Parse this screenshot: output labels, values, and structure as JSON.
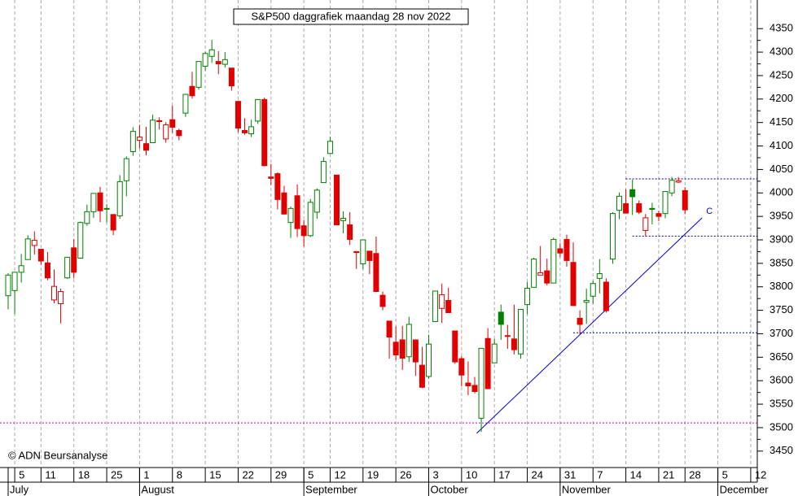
{
  "chart_data": {
    "type": "candlestick",
    "title": "S&P500 daggrafiek maandag 28 nov 2022",
    "credit": "© ADN Beursanalyse",
    "open": [
      3781,
      3792,
      3831,
      3858,
      3888,
      3880,
      3851,
      3772,
      3764,
      3819,
      3883,
      3861,
      3935,
      3960,
      4000,
      3966,
      3954,
      3951,
      4026,
      4088,
      4112,
      4105,
      4107,
      4154,
      4115,
      4156,
      4133,
      4170,
      4227,
      4225,
      4270,
      4291,
      4280,
      4274,
      4266,
      4195,
      4133,
      4126,
      4153,
      4199,
      4034,
      4041,
      4000,
      3937,
      3994,
      3930,
      3909,
      3959,
      4022,
      4084,
      4038,
      3941,
      3932,
      3875,
      3849,
      3876,
      3871,
      3782,
      3727,
      3682,
      3687,
      3651,
      3687,
      3633,
      3609,
      3726,
      3754,
      3771,
      3706,
      3647,
      3595,
      3590,
      3520,
      3690,
      3638,
      3746,
      3696,
      3689,
      3657,
      3762,
      3799,
      3825,
      3834,
      3808,
      3881,
      3901,
      3852,
      3733,
      3767,
      3780,
      3818,
      3810,
      3859,
      3963,
      3977,
      4007,
      3977,
      3920,
      3967,
      3956,
      3956,
      4000,
      4023,
      4005
    ],
    "high": [
      3829,
      3832,
      3870,
      3910,
      3918,
      3880,
      3874,
      3837,
      3796,
      3864,
      3902,
      3939,
      3975,
      3999,
      4013,
      3976,
      3954,
      4038,
      4078,
      4140,
      4145,
      4141,
      4167,
      4161,
      4151,
      4186,
      4137,
      4211,
      4258,
      4280,
      4301,
      4326,
      4302,
      4300,
      4266,
      4196,
      4159,
      4156,
      4200,
      4203,
      4062,
      4044,
      4015,
      3971,
      4018,
      3942,
      3987,
      4010,
      4076,
      4119,
      4038,
      3961,
      3959,
      3876,
      3900,
      3876,
      3907,
      3790,
      3727,
      3716,
      3717,
      3736,
      3687,
      3672,
      3698,
      3791,
      3807,
      3798,
      3706,
      3652,
      3641,
      3608,
      3669,
      3712,
      3689,
      3762,
      3719,
      3762,
      3752,
      3810,
      3862,
      3887,
      3860,
      3905,
      3893,
      3911,
      3895,
      3750,
      3796,
      3813,
      3859,
      3818,
      3959,
      4001,
      4008,
      4028,
      3984,
      3955,
      3979,
      3962,
      4004,
      4034,
      4034,
      4012
    ],
    "low": [
      3752,
      3742,
      3809,
      3858,
      3869,
      3847,
      3814,
      3765,
      3722,
      3817,
      3818,
      3860,
      3930,
      3947,
      3938,
      3937,
      3910,
      3945,
      3993,
      4079,
      4095,
      4080,
      4107,
      4135,
      4107,
      4128,
      4112,
      4162,
      4201,
      4220,
      4261,
      4277,
      4253,
      4267,
      4218,
      4129,
      4124,
      4119,
      4147,
      4057,
      4017,
      3965,
      3954,
      3904,
      3906,
      3886,
      3906,
      3945,
      4022,
      4083,
      3933,
      3914,
      3889,
      3838,
      3838,
      3827,
      3789,
      3750,
      3647,
      3644,
      3623,
      3640,
      3610,
      3584,
      3604,
      3726,
      3723,
      3745,
      3636,
      3588,
      3569,
      3573,
      3491,
      3584,
      3638,
      3687,
      3668,
      3656,
      3647,
      3742,
      3799,
      3825,
      3803,
      3808,
      3863,
      3843,
      3759,
      3699,
      3721,
      3764,
      3786,
      3745,
      3849,
      3944,
      3957,
      3953,
      3955,
      3907,
      3933,
      3940,
      3946,
      3993,
      4021,
      3955
    ],
    "close": [
      3825,
      3831,
      3845,
      3902,
      3899,
      3855,
      3819,
      3801,
      3790,
      3863,
      3831,
      3937,
      3960,
      3999,
      3962,
      3967,
      3921,
      4024,
      4073,
      4131,
      4119,
      4091,
      4155,
      4152,
      4145,
      4140,
      4122,
      4210,
      4207,
      4280,
      4297,
      4305,
      4275,
      4284,
      4228,
      4138,
      4128,
      4141,
      4199,
      4058,
      4031,
      3986,
      3955,
      3967,
      3924,
      3909,
      3980,
      4006,
      4067,
      4110,
      3932,
      3946,
      3901,
      3873,
      3900,
      3856,
      3790,
      3758,
      3693,
      3655,
      3648,
      3720,
      3640,
      3586,
      3678,
      3791,
      3783,
      3745,
      3640,
      3612,
      3589,
      3577,
      3669,
      3583,
      3678,
      3720,
      3695,
      3666,
      3752,
      3797,
      3859,
      3830,
      3808,
      3901,
      3872,
      3856,
      3760,
      3720,
      3771,
      3807,
      3828,
      3749,
      3956,
      3993,
      3957,
      3992,
      3959,
      3947,
      3965,
      3950,
      4003,
      4027,
      4026,
      3964
    ],
    "up_color": "#008000",
    "down_color": "#e00000",
    "xlim": [
      -1.24,
      114
    ],
    "ylim": [
      3415,
      4411
    ],
    "yticks": [
      3450,
      3500,
      3550,
      3600,
      3650,
      3700,
      3750,
      3800,
      3850,
      3900,
      3950,
      4000,
      4050,
      4100,
      4150,
      4200,
      4250,
      4300,
      4350
    ],
    "xticks": [
      {
        "value": 1,
        "label": "5"
      },
      {
        "value": 5,
        "label": "11"
      },
      {
        "value": 10,
        "label": "18"
      },
      {
        "value": 15,
        "label": "25"
      },
      {
        "value": 20,
        "label": "1"
      },
      {
        "value": 25,
        "label": "8"
      },
      {
        "value": 30,
        "label": "15"
      },
      {
        "value": 35,
        "label": "22"
      },
      {
        "value": 40,
        "label": "29"
      },
      {
        "value": 45,
        "label": "5"
      },
      {
        "value": 49,
        "label": "12"
      },
      {
        "value": 54,
        "label": "19"
      },
      {
        "value": 59,
        "label": "26"
      },
      {
        "value": 64,
        "label": "3"
      },
      {
        "value": 69,
        "label": "10"
      },
      {
        "value": 74,
        "label": "17"
      },
      {
        "value": 79,
        "label": "24"
      },
      {
        "value": 84,
        "label": "31"
      },
      {
        "value": 89,
        "label": "7"
      },
      {
        "value": 94,
        "label": "14"
      },
      {
        "value": 99,
        "label": "21"
      },
      {
        "value": 103,
        "label": "28"
      },
      {
        "value": 108,
        "label": "5"
      },
      {
        "value": 113,
        "label": "12"
      }
    ],
    "months": [
      {
        "value": 0,
        "label": "July"
      },
      {
        "value": 20,
        "label": "August"
      },
      {
        "value": 45,
        "label": "September"
      },
      {
        "value": 64,
        "label": "October"
      },
      {
        "value": 84,
        "label": "November"
      },
      {
        "value": 108,
        "label": "December"
      }
    ],
    "grid": true,
    "levels": [
      {
        "value": 4030,
        "from": 94,
        "color": "#000080"
      },
      {
        "value": 3908,
        "from": 95,
        "color": "#000080"
      },
      {
        "value": 3702,
        "from": 86,
        "color": "#000080"
      },
      {
        "value": 3510,
        "from": -1.24,
        "color": "#cc00cc"
      }
    ],
    "trendline": {
      "x": [
        71.3,
        105.6
      ],
      "y": [
        3488,
        3947
      ],
      "label": "C",
      "color": "#0000cc"
    }
  }
}
